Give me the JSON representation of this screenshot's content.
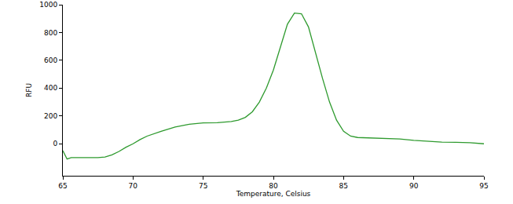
{
  "chart_data": {
    "type": "line",
    "x_label": "Temperature, Celsius",
    "y_label": "RFU",
    "x": [
      65.0,
      65.3,
      65.6,
      66.0,
      67.0,
      67.5,
      68.0,
      68.5,
      69.0,
      69.5,
      70.0,
      70.5,
      71.0,
      72.0,
      73.0,
      74.0,
      75.0,
      76.0,
      77.0,
      77.5,
      78.0,
      78.5,
      79.0,
      79.5,
      80.0,
      80.5,
      81.0,
      81.5,
      82.0,
      82.5,
      83.0,
      83.5,
      84.0,
      84.5,
      85.0,
      85.5,
      86.0,
      87.0,
      88.0,
      89.0,
      90.0,
      91.0,
      92.0,
      93.0,
      94.0,
      95.0
    ],
    "values": [
      -50,
      -110,
      -100,
      -100,
      -100,
      -100,
      -95,
      -80,
      -55,
      -25,
      0,
      30,
      55,
      90,
      120,
      140,
      150,
      152,
      160,
      170,
      190,
      230,
      300,
      400,
      530,
      700,
      860,
      940,
      935,
      840,
      650,
      470,
      300,
      170,
      90,
      55,
      45,
      42,
      42,
      35,
      25,
      18,
      12,
      10,
      8,
      0
    ],
    "color": "#2e9a2e",
    "xlim": [
      65,
      95
    ],
    "xticks": [
      65,
      70,
      75,
      80,
      85,
      90,
      95
    ],
    "ylim": [
      -230,
      1000
    ],
    "yticks": [
      0,
      200,
      400,
      600,
      800,
      1000
    ],
    "grid": false
  }
}
